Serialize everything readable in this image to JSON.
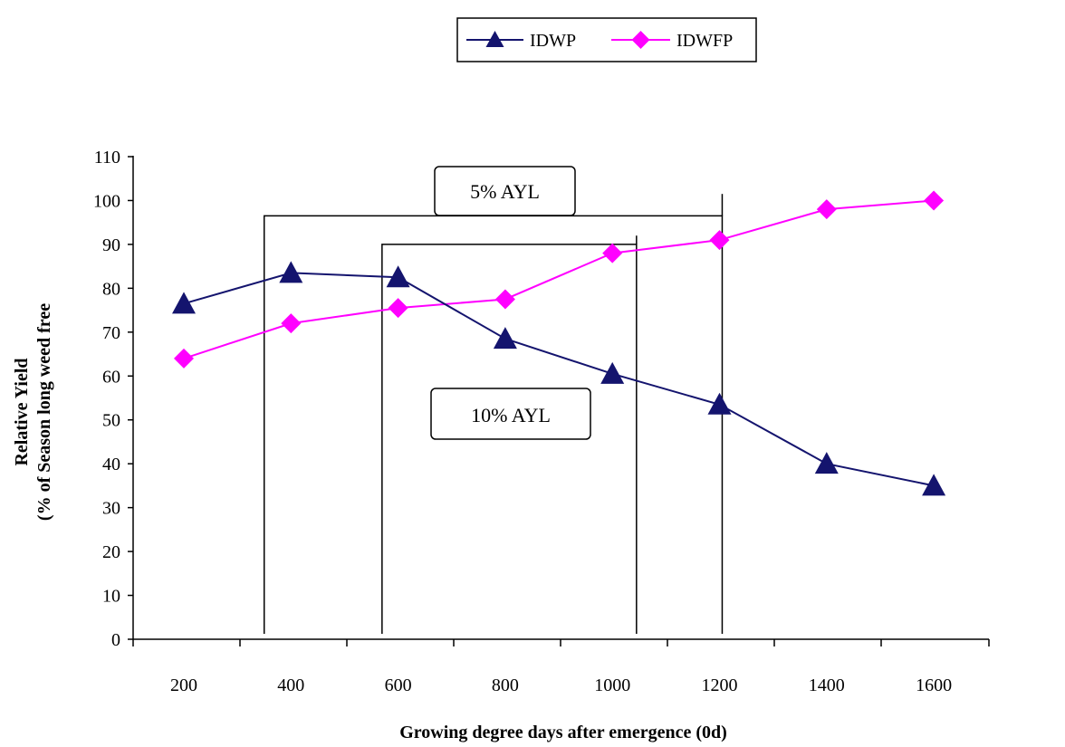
{
  "chart_data": {
    "type": "line",
    "x": [
      200,
      400,
      600,
      800,
      1000,
      1200,
      1400,
      1600
    ],
    "series": [
      {
        "name": "IDWP",
        "color": "#14146e",
        "marker": "triangle",
        "values": [
          76.5,
          83.5,
          82.5,
          68.5,
          60.5,
          53.5,
          40,
          35
        ]
      },
      {
        "name": "IDWFP",
        "color": "#ff00ff",
        "marker": "diamond",
        "values": [
          64,
          72,
          75.5,
          77.5,
          88,
          91,
          98,
          100
        ]
      }
    ],
    "xlabel": "Growing degree days after emergence (0d)",
    "ylabel_line1": "Relative  Yield",
    "ylabel_line2": "(% of Season long weed free",
    "ylim": [
      0,
      110
    ],
    "yticks": [
      0,
      10,
      20,
      30,
      40,
      50,
      60,
      70,
      80,
      90,
      100,
      110
    ],
    "xticks": [
      "200",
      "400",
      "600",
      "800",
      "1000",
      "1200",
      "1400",
      "1600"
    ],
    "legend_position": "top-center",
    "annotations": [
      {
        "label": "5% AYL",
        "x_start": 350,
        "x_end": 1205,
        "y": 96.5
      },
      {
        "label": "10% AYL",
        "x_start": 570,
        "x_end": 1045,
        "y": 90
      }
    ]
  }
}
